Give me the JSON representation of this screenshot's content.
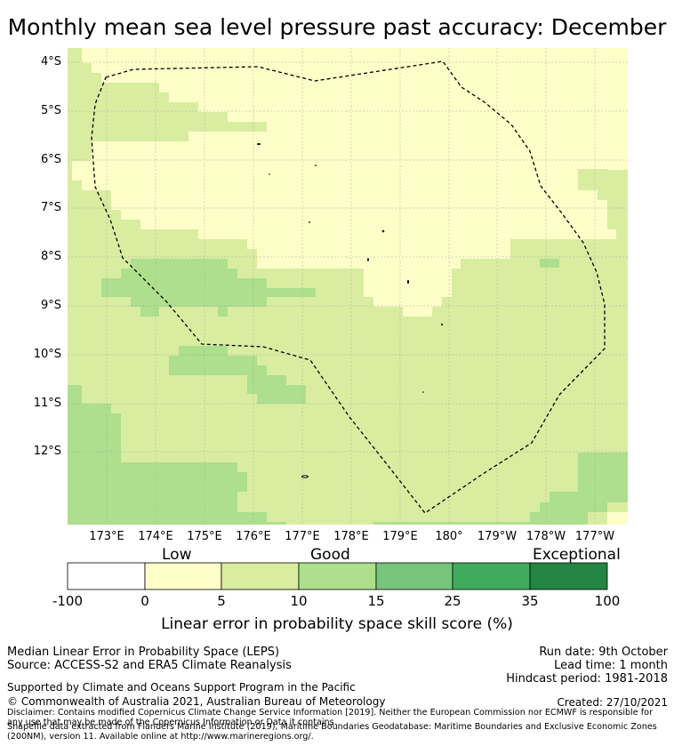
{
  "title": "Monthly mean sea level pressure past accuracy: December",
  "map": {
    "lat_labels": [
      "4°S",
      "5°S",
      "6°S",
      "7°S",
      "8°S",
      "9°S",
      "10°S",
      "11°S",
      "12°S"
    ],
    "lon_labels": [
      "173°E",
      "174°E",
      "175°E",
      "176°E",
      "177°E",
      "178°E",
      "179°E",
      "180°",
      "179°W",
      "178°W",
      "177°W"
    ],
    "extent": {
      "lon_min": 172.2,
      "lon_max": 183.75,
      "lat_top": -3.75,
      "lat_bottom": -13.75
    },
    "category_colors": [
      "#ffffff",
      "#fefec9",
      "#d9eda1",
      "#addf8d",
      "#77c47b",
      "#40ab5c",
      "#238443"
    ]
  },
  "colorbar": {
    "category_labels": [
      "Low",
      "Good",
      "Exceptional"
    ],
    "ticks": [
      "-100",
      "0",
      "5",
      "10",
      "15",
      "25",
      "35",
      "100"
    ],
    "title": "Linear error in probability space skill score (%)"
  },
  "footer": {
    "line1": "Median Linear Error in Probability Space (LEPS)",
    "line2": "Source: ACCESS-S2 and ERA5 Climate Reanalysis",
    "run_date": "Run date: 9th October",
    "lead_time": "Lead time: 1 month",
    "hindcast": "Hindcast period: 1981-2018",
    "support": "Supported by Climate and Oceans Support Program in the Pacific",
    "copyright": "© Commonwealth of Australia 2021, Australian Bureau of Meteorology",
    "created": "Created: 27/10/2021",
    "disclaimer": "Disclaimer: Contains modified Copernicus Climate Change Service Information [2019]. Neither the European Commission nor ECMWF is responsible for any use that may be made of the Copernicus Information or Data it contains.",
    "shapefile": "Shapefile data extracted from Flanders Marine Institute (2019), Maritime Boundaries Geodatabase: Maritime Boundaries and Exclusive Economic Zones (200NM), version 11. Available online at http://www.marineregions.org/."
  }
}
